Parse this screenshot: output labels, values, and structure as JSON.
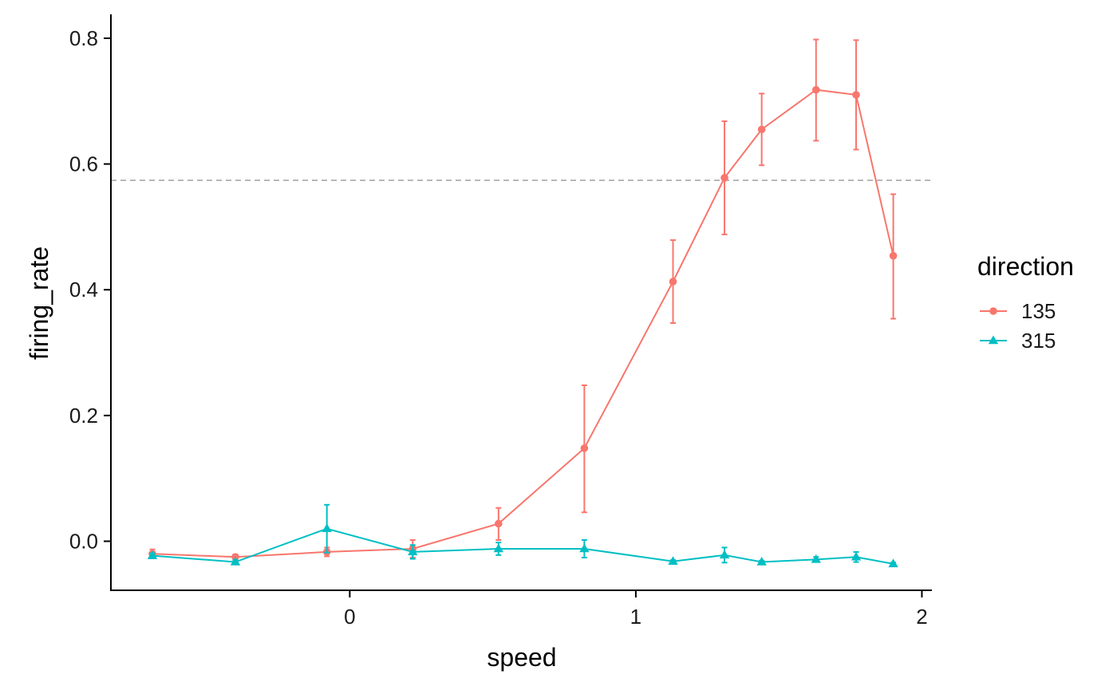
{
  "chart_data": {
    "type": "line",
    "xlabel": "speed",
    "ylabel": "firing_rate",
    "xlim": [
      -0.835,
      2.035
    ],
    "ylim": [
      -0.078,
      0.838
    ],
    "x_ticks": [
      0,
      1,
      2
    ],
    "x_tick_labels": [
      "0",
      "1",
      "2"
    ],
    "y_ticks": [
      0.0,
      0.2,
      0.4,
      0.6,
      0.8
    ],
    "y_tick_labels": [
      "0.0",
      "0.2",
      "0.4",
      "0.6",
      "0.8"
    ],
    "grid": false,
    "reference_line": {
      "y": 0.574,
      "style": "dashed",
      "color": "#b3b3b3"
    },
    "legend": {
      "title": "direction",
      "position": "right"
    },
    "series": [
      {
        "name": "135",
        "color": "#F8766D",
        "marker": "circle",
        "x": [
          -0.69,
          -0.4,
          -0.08,
          0.22,
          0.52,
          0.82,
          1.13,
          1.31,
          1.44,
          1.63,
          1.77,
          1.9
        ],
        "y": [
          -0.02,
          -0.025,
          -0.017,
          -0.012,
          0.028,
          0.148,
          0.413,
          0.578,
          0.655,
          0.718,
          0.71,
          0.454
        ],
        "err_low": [
          -0.013,
          -0.021,
          -0.01,
          0.002,
          0.053,
          0.248,
          0.479,
          0.668,
          0.712,
          0.798,
          0.797,
          0.552
        ],
        "err_high": [
          -0.027,
          -0.029,
          -0.024,
          -0.026,
          0.002,
          0.046,
          0.347,
          0.488,
          0.598,
          0.637,
          0.623,
          0.354
        ]
      },
      {
        "name": "315",
        "color": "#00BFC4",
        "marker": "triangle",
        "x": [
          -0.69,
          -0.4,
          -0.08,
          0.22,
          0.52,
          0.82,
          1.13,
          1.31,
          1.44,
          1.63,
          1.77,
          1.9
        ],
        "y": [
          -0.023,
          -0.033,
          0.02,
          -0.017,
          -0.012,
          -0.012,
          -0.032,
          -0.022,
          -0.033,
          -0.029,
          -0.025,
          -0.036
        ],
        "err_low": [
          -0.019,
          -0.03,
          0.058,
          -0.006,
          -0.002,
          0.002,
          -0.03,
          -0.01,
          -0.031,
          -0.025,
          -0.017,
          -0.034
        ],
        "err_high": [
          -0.027,
          -0.036,
          -0.018,
          -0.028,
          -0.022,
          -0.026,
          -0.034,
          -0.034,
          -0.035,
          -0.033,
          -0.033,
          -0.038
        ]
      }
    ]
  }
}
